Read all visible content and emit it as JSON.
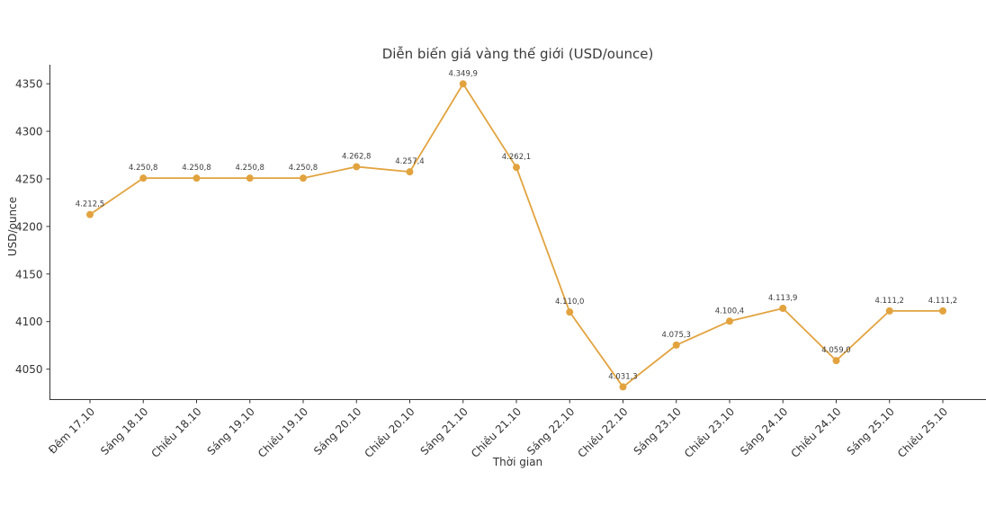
{
  "chart_data": {
    "type": "line",
    "title": "Diễn biến giá vàng thế giới (USD/ounce)",
    "xlabel": "Thời gian",
    "ylabel": "USD/ounce",
    "categories": [
      "Đêm 17.10",
      "Sáng 18.10",
      "Chiều 18.10",
      "Sáng 19.10",
      "Chiều 19.10",
      "Sáng 20.10",
      "Chiều 20.10",
      "Sáng 21.10",
      "Chiều 21.10",
      "Sáng 22.10",
      "Chiều 22.10",
      "Sáng 23.10",
      "Chiều 23.10",
      "Sáng 24.10",
      "Chiều 24.10",
      "Sáng 25.10",
      "Chiều 25.10"
    ],
    "values": [
      4212.5,
      4250.8,
      4250.8,
      4250.8,
      4250.8,
      4262.8,
      4257.4,
      4349.9,
      4262.1,
      4110.0,
      4031.3,
      4075.3,
      4100.4,
      4113.9,
      4059.0,
      4111.2,
      4111.2
    ],
    "point_labels": [
      "4.212,5",
      "4.250,8",
      "4.250,8",
      "4.250,8",
      "4.250,8",
      "4.262,8",
      "4.257,4",
      "4.349,9",
      "4.262,1",
      "4.110,0",
      "4.031,3",
      "4.075,3",
      "4.100,4",
      "4.113,9",
      "4.059,0",
      "4.111,2",
      "4.111,2"
    ],
    "yticks": [
      4050,
      4100,
      4150,
      4200,
      4250,
      4300,
      4350
    ],
    "ylim": [
      4018,
      4370
    ],
    "grid": false,
    "legend": "none",
    "line_color": "#E2A33F",
    "marker_color": "#E2A33F",
    "annotation_color": "#3c3c3c",
    "tick_color": "#333333",
    "axis_color": "#333333",
    "background_color": "#ffffff"
  }
}
